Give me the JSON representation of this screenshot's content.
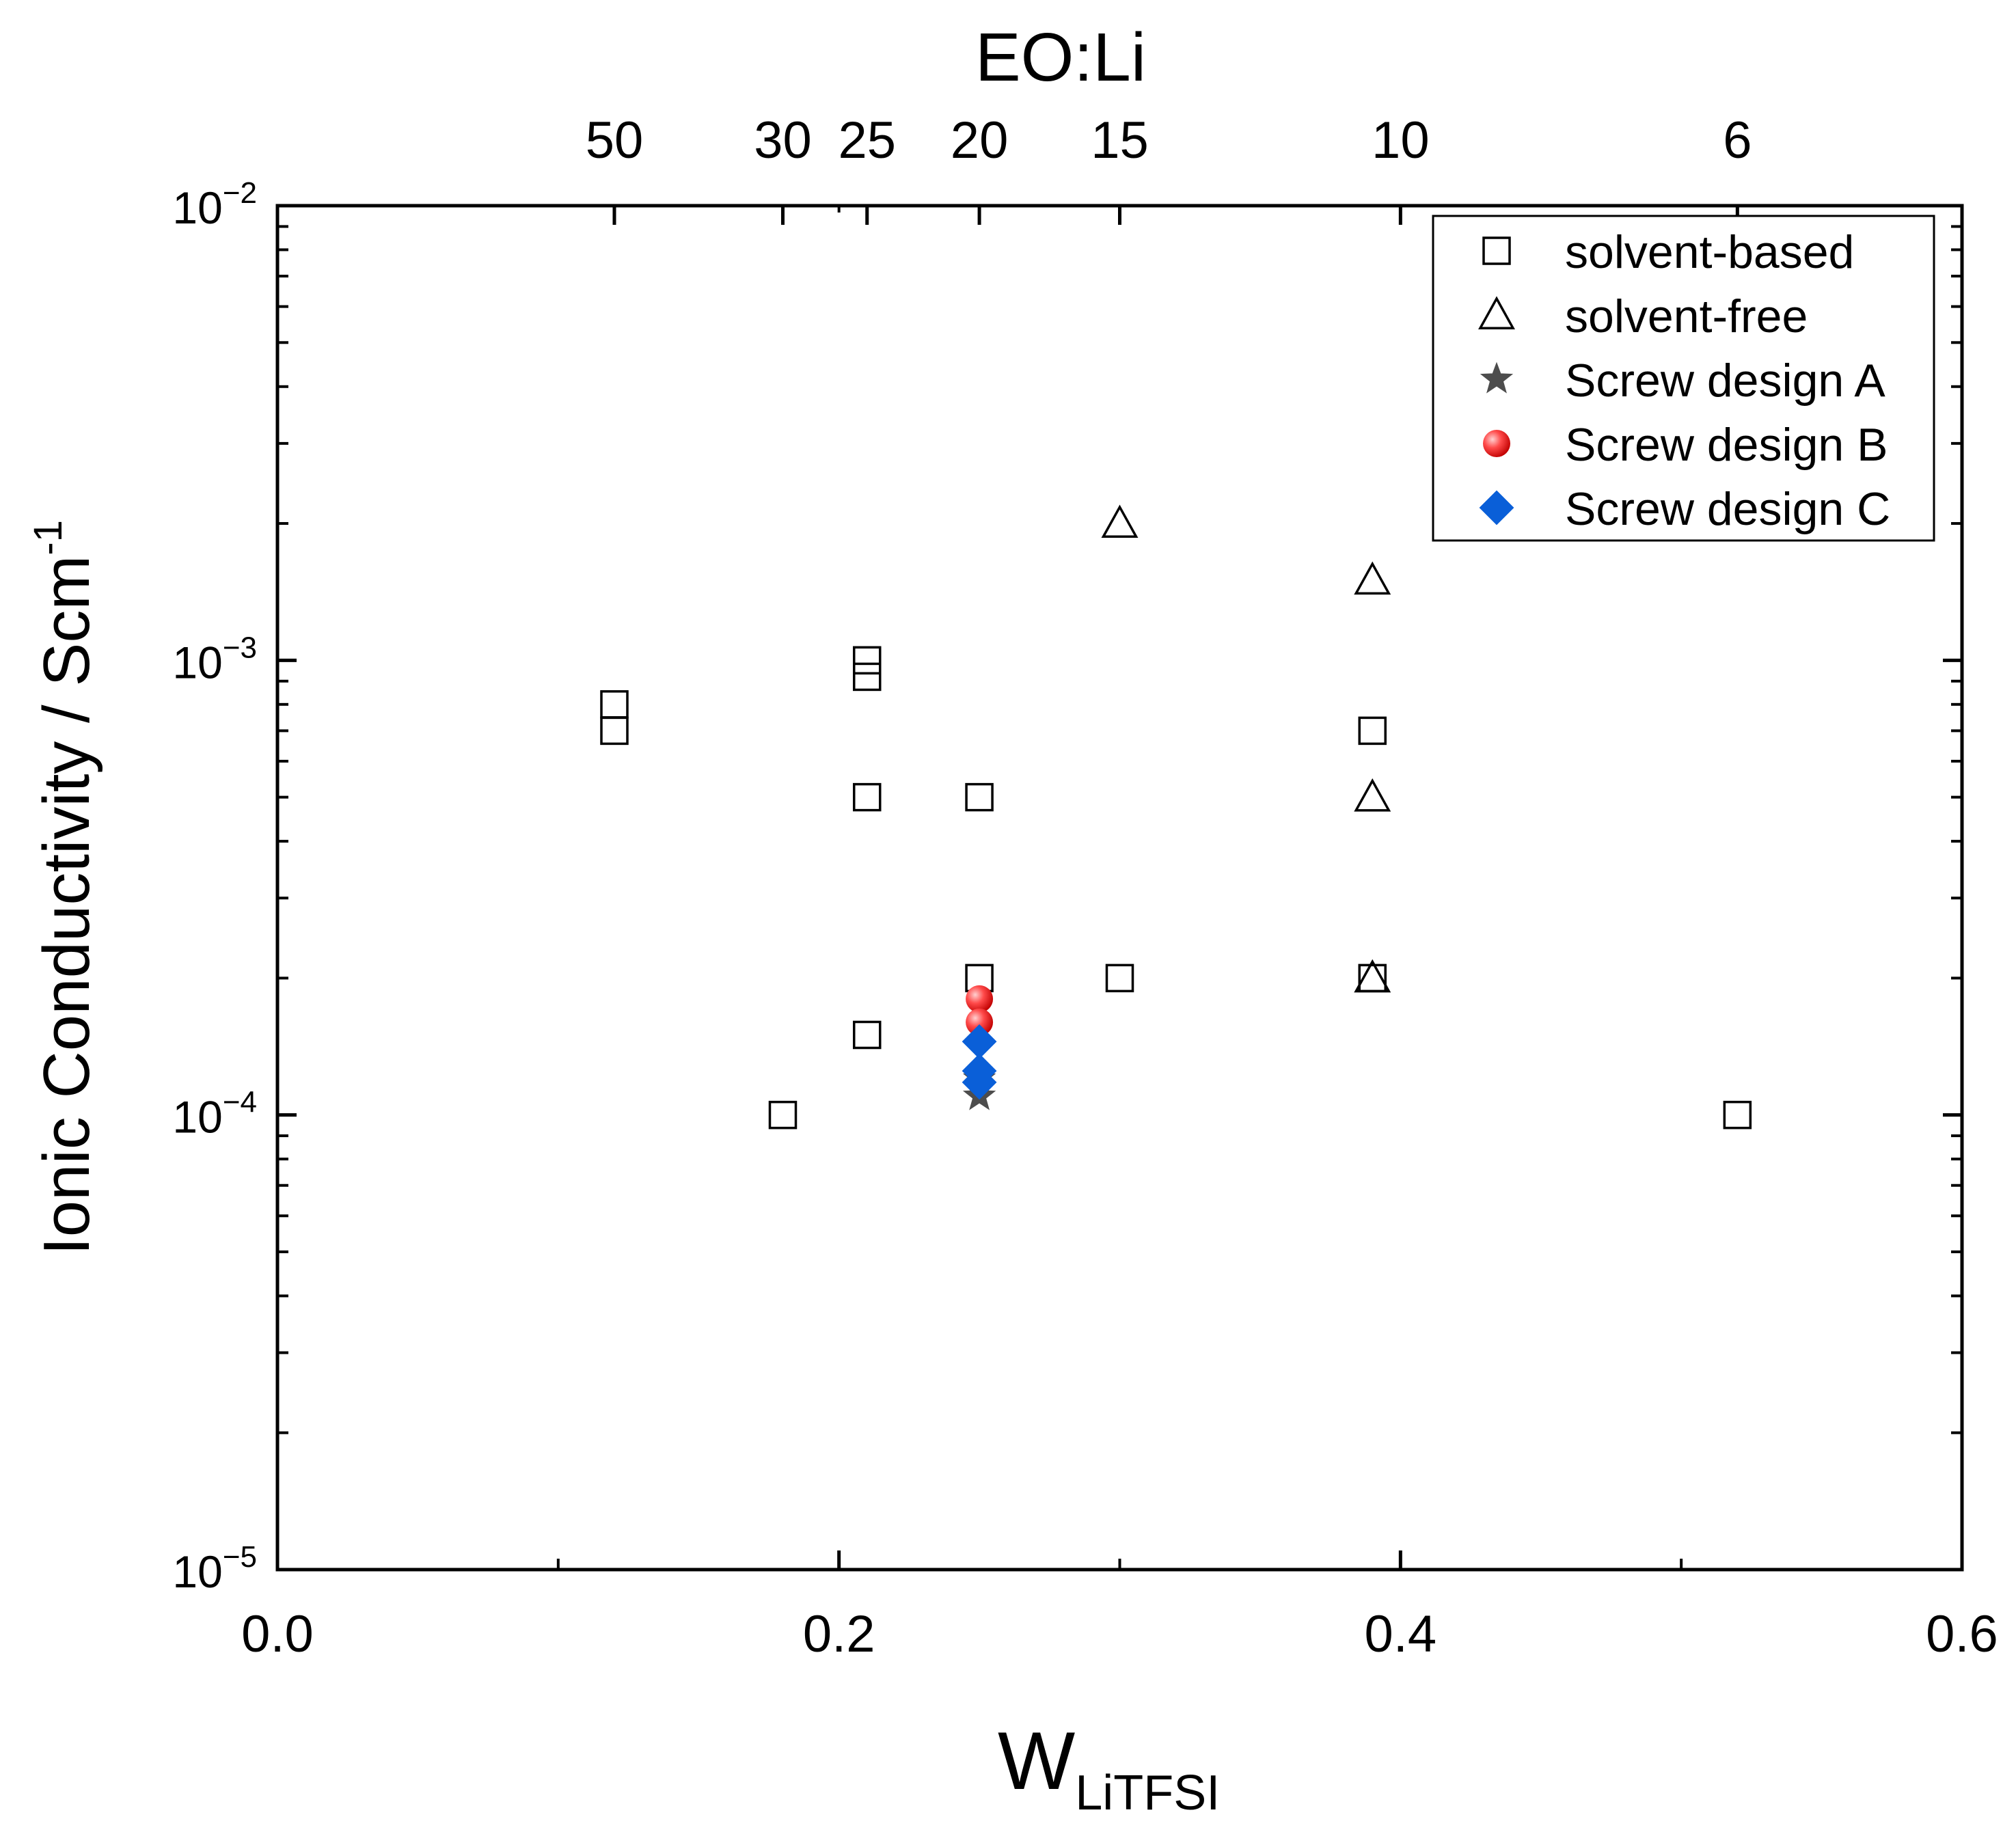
{
  "chart_data": {
    "type": "scatter",
    "title": "",
    "xlabel_main": "W",
    "xlabel_sub": "LiTFSI",
    "ylabel_main": "Ionic Conductivity / Scm",
    "ylabel_sup": "-1",
    "top_axis_label": "EO:Li",
    "xlim": [
      0,
      0.6
    ],
    "ylim": [
      1e-05,
      0.01
    ],
    "y_scale": "log",
    "x_ticks": [
      {
        "value": 0.0,
        "label": "0.0"
      },
      {
        "value": 0.2,
        "label": "0.2"
      },
      {
        "value": 0.4,
        "label": "0.4"
      },
      {
        "value": 0.6,
        "label": "0.6"
      }
    ],
    "y_ticks": [
      {
        "value": 1e-05,
        "base": "10",
        "exp": "−5"
      },
      {
        "value": 0.0001,
        "base": "10",
        "exp": "−4"
      },
      {
        "value": 0.001,
        "base": "10",
        "exp": "−3"
      },
      {
        "value": 0.01,
        "base": "10",
        "exp": "−2"
      }
    ],
    "top_ticks": [
      {
        "x": 0.12,
        "label": "50"
      },
      {
        "x": 0.18,
        "label": "30"
      },
      {
        "x": 0.21,
        "label": "25"
      },
      {
        "x": 0.25,
        "label": "20"
      },
      {
        "x": 0.3,
        "label": "15"
      },
      {
        "x": 0.4,
        "label": "10"
      },
      {
        "x": 0.52,
        "label": "6"
      }
    ],
    "grid": false,
    "legend": "top-right",
    "series": [
      {
        "name": "solvent-based",
        "marker": "square",
        "color": "#000000",
        "points": [
          [
            0.12,
            0.0008
          ],
          [
            0.12,
            0.0007
          ],
          [
            0.18,
            0.0001
          ],
          [
            0.21,
            0.001
          ],
          [
            0.21,
            0.00092
          ],
          [
            0.21,
            0.0005
          ],
          [
            0.21,
            0.00015
          ],
          [
            0.25,
            0.0005
          ],
          [
            0.25,
            0.0002
          ],
          [
            0.3,
            0.0002
          ],
          [
            0.39,
            0.0007
          ],
          [
            0.39,
            0.0002
          ],
          [
            0.52,
            0.0001
          ]
        ]
      },
      {
        "name": "solvent-free",
        "marker": "triangle",
        "color": "#000000",
        "points": [
          [
            0.3,
            0.002
          ],
          [
            0.39,
            0.0015
          ],
          [
            0.39,
            0.0005
          ],
          [
            0.39,
            0.0002
          ]
        ]
      },
      {
        "name": "Screw design A",
        "marker": "star",
        "color": "#4d4d4d",
        "points": [
          [
            0.25,
            0.00011
          ],
          [
            0.25,
            0.00012
          ]
        ]
      },
      {
        "name": "Screw design B",
        "marker": "circle",
        "color": "#ff2020",
        "points": [
          [
            0.25,
            0.00018
          ],
          [
            0.25,
            0.00016
          ]
        ]
      },
      {
        "name": "Screw design C",
        "marker": "diamond",
        "color": "#0a5fd8",
        "points": [
          [
            0.25,
            0.000145
          ],
          [
            0.25,
            0.000125
          ],
          [
            0.25,
            0.000118
          ]
        ]
      }
    ]
  }
}
